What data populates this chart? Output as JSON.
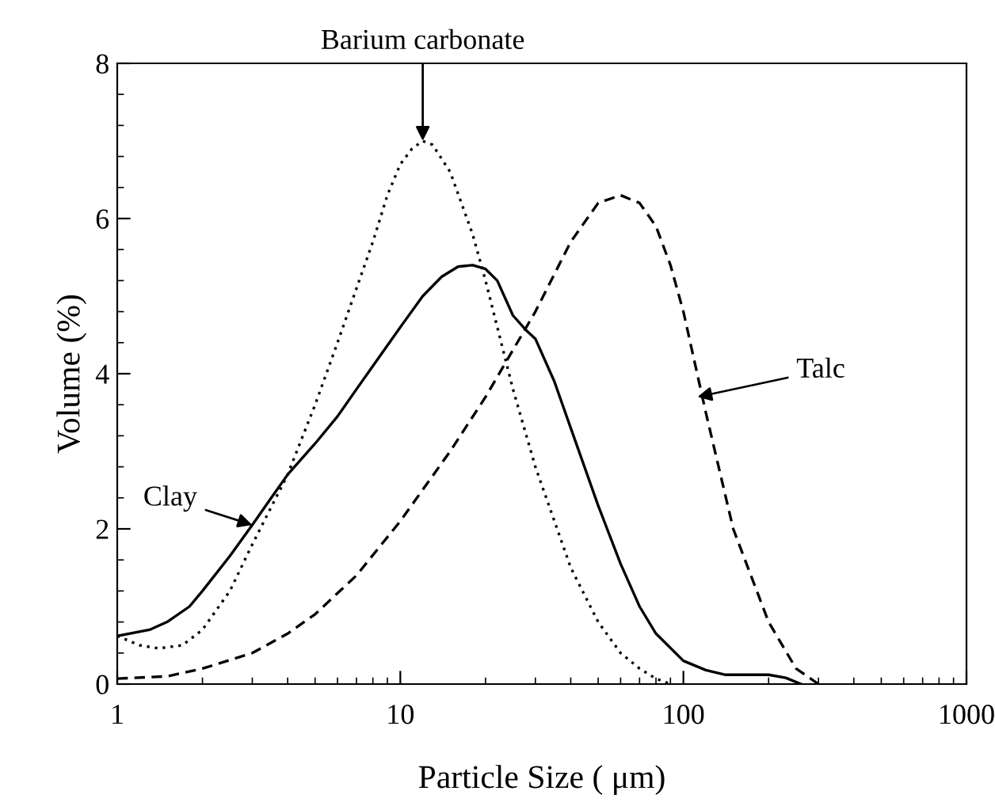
{
  "chart_data": {
    "type": "line",
    "xlabel": "Particle Size ( μm)",
    "ylabel": "Volume (%)",
    "log": "x",
    "xlim": [
      1,
      1000
    ],
    "xticks": [
      1,
      10,
      100,
      1000
    ],
    "ylim": [
      0,
      8
    ],
    "yticks": [
      0,
      2,
      4,
      6,
      8
    ],
    "grid": false,
    "legend": false,
    "marker": "none",
    "series": [
      {
        "color": "#000000",
        "line_style": "solid",
        "x": [
          1,
          1.3,
          1.5,
          1.8,
          2,
          2.5,
          3,
          3.5,
          4,
          5,
          6,
          7,
          8,
          10,
          12,
          14,
          16,
          18,
          20,
          22,
          25,
          28,
          30,
          35,
          40,
          50,
          60,
          70,
          80,
          100,
          120,
          140,
          200,
          230,
          260
        ],
        "values": [
          0.62,
          0.7,
          0.8,
          1.0,
          1.2,
          1.65,
          2.05,
          2.4,
          2.7,
          3.1,
          3.45,
          3.8,
          4.1,
          4.6,
          5.0,
          5.25,
          5.38,
          5.4,
          5.35,
          5.2,
          4.75,
          4.55,
          4.45,
          3.9,
          3.3,
          2.3,
          1.55,
          1.0,
          0.65,
          0.3,
          0.18,
          0.12,
          0.12,
          0.08,
          0.0
        ]
      },
      {
        "color": "#000000",
        "line_style": "dotted",
        "x": [
          1,
          1.2,
          1.4,
          1.7,
          2,
          2.5,
          3,
          4,
          5,
          6,
          7,
          8,
          9,
          10,
          11,
          12,
          13,
          15,
          18,
          20,
          25,
          30,
          40,
          50,
          60,
          70,
          80,
          90
        ],
        "values": [
          0.62,
          0.5,
          0.46,
          0.5,
          0.7,
          1.2,
          1.8,
          2.7,
          3.6,
          4.4,
          5.1,
          5.7,
          6.3,
          6.7,
          6.9,
          7.0,
          6.95,
          6.6,
          5.8,
          5.2,
          3.8,
          2.8,
          1.5,
          0.8,
          0.4,
          0.2,
          0.07,
          0.0
        ]
      },
      {
        "color": "#000000",
        "line_style": "dashed",
        "x": [
          1,
          1.5,
          2,
          3,
          4,
          5,
          7,
          10,
          15,
          20,
          30,
          40,
          50,
          60,
          70,
          80,
          90,
          100,
          120,
          150,
          200,
          250,
          300
        ],
        "values": [
          0.07,
          0.1,
          0.2,
          0.4,
          0.65,
          0.9,
          1.4,
          2.1,
          3.0,
          3.7,
          4.8,
          5.7,
          6.2,
          6.3,
          6.2,
          5.9,
          5.4,
          4.8,
          3.5,
          2.0,
          0.8,
          0.2,
          0.0
        ]
      }
    ],
    "annotations": [
      {
        "text": "Barium carbonate",
        "x": 12,
        "y": 7.0
      },
      {
        "text": "Clay",
        "x": 3,
        "y": 2.05
      },
      {
        "text": "Talc",
        "x": 112,
        "y": 3.7
      }
    ]
  }
}
